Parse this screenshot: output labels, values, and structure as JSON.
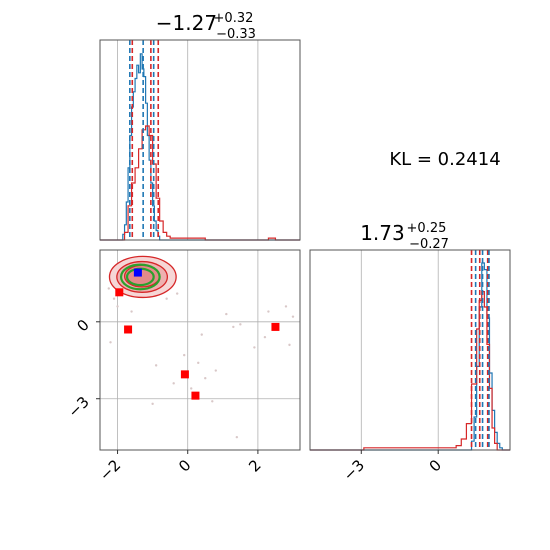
{
  "chart_data": {
    "type": "corner",
    "kl_label": "KL = 0.2414",
    "colors": {
      "hist_a": "#1f77b4",
      "hist_b": "#d62728",
      "contour_fill": "#e8a0a0",
      "contour_line": "#d62728",
      "contour_green": "#2ca02c",
      "marker_blue": "#0000ff",
      "marker_red": "#ff0000",
      "scatter_pts": "#d9c8c8"
    },
    "param1": {
      "title_value": "−1.27",
      "title_plus": "+0.32",
      "title_minus": "−0.33",
      "range": [
        -2.5,
        3.2
      ],
      "ticks": [
        -2,
        0,
        2
      ],
      "tick_labels": [
        "−2",
        "0",
        "2"
      ],
      "blue_quantiles": [
        -1.65,
        -1.27,
        -0.97
      ],
      "red_quantiles": [
        -1.58,
        -1.05,
        -0.84
      ],
      "hist_blue": [
        [
          -2.5,
          0
        ],
        [
          -1.9,
          0
        ],
        [
          -1.85,
          0.03
        ],
        [
          -1.8,
          0.08
        ],
        [
          -1.75,
          0.2
        ],
        [
          -1.7,
          0.38
        ],
        [
          -1.65,
          0.55
        ],
        [
          -1.6,
          0.7
        ],
        [
          -1.55,
          0.78
        ],
        [
          -1.5,
          0.85
        ],
        [
          -1.45,
          0.92
        ],
        [
          -1.4,
          0.88
        ],
        [
          -1.35,
          0.98
        ],
        [
          -1.3,
          0.9
        ],
        [
          -1.25,
          0.86
        ],
        [
          -1.2,
          0.72
        ],
        [
          -1.15,
          0.55
        ],
        [
          -1.1,
          0.42
        ],
        [
          -1.05,
          0.3
        ],
        [
          -1.0,
          0.18
        ],
        [
          -0.95,
          0.1
        ],
        [
          -0.9,
          0.05
        ],
        [
          -0.85,
          0.02
        ],
        [
          -0.8,
          0
        ],
        [
          3.2,
          0
        ]
      ],
      "hist_red": [
        [
          -2.5,
          0
        ],
        [
          -1.9,
          0
        ],
        [
          -1.8,
          0.04
        ],
        [
          -1.7,
          0.18
        ],
        [
          -1.6,
          0.3
        ],
        [
          -1.5,
          0.38
        ],
        [
          -1.4,
          0.48
        ],
        [
          -1.3,
          0.58
        ],
        [
          -1.2,
          0.6
        ],
        [
          -1.1,
          0.55
        ],
        [
          -1.0,
          0.4
        ],
        [
          -0.9,
          0.22
        ],
        [
          -0.8,
          0.1
        ],
        [
          -0.7,
          0.04
        ],
        [
          -0.6,
          0.02
        ],
        [
          -0.5,
          0.01
        ],
        [
          0.0,
          0.01
        ],
        [
          0.5,
          0.0
        ],
        [
          2.3,
          0.01
        ],
        [
          2.5,
          0
        ],
        [
          3.2,
          0
        ]
      ]
    },
    "param2": {
      "title_value": "1.73",
      "title_plus": "+0.25",
      "title_minus": "−0.27",
      "range": [
        -5.0,
        2.8
      ],
      "ticks": [
        -3,
        0
      ],
      "tick_labels": [
        "−3",
        "0"
      ],
      "blue_quantiles": [
        1.46,
        1.73,
        1.98
      ],
      "red_quantiles": [
        1.3,
        1.62,
        1.93
      ],
      "hist_blue": [
        [
          -5.0,
          0
        ],
        [
          1.2,
          0
        ],
        [
          1.3,
          0.04
        ],
        [
          1.4,
          0.15
        ],
        [
          1.5,
          0.38
        ],
        [
          1.6,
          0.65
        ],
        [
          1.7,
          0.85
        ],
        [
          1.8,
          0.82
        ],
        [
          1.9,
          0.6
        ],
        [
          2.0,
          0.35
        ],
        [
          2.1,
          0.18
        ],
        [
          2.2,
          0.08
        ],
        [
          2.3,
          0.03
        ],
        [
          2.4,
          0.01
        ],
        [
          2.5,
          0
        ],
        [
          2.8,
          0
        ]
      ],
      "hist_red": [
        [
          -5.0,
          0
        ],
        [
          -2.9,
          0.01
        ],
        [
          -2.0,
          0.01
        ],
        [
          -1.0,
          0.01
        ],
        [
          0.0,
          0.01
        ],
        [
          0.7,
          0.02
        ],
        [
          0.9,
          0.05
        ],
        [
          1.1,
          0.12
        ],
        [
          1.3,
          0.3
        ],
        [
          1.5,
          0.55
        ],
        [
          1.6,
          0.68
        ],
        [
          1.7,
          0.72
        ],
        [
          1.8,
          0.65
        ],
        [
          1.9,
          0.48
        ],
        [
          2.0,
          0.28
        ],
        [
          2.1,
          0.1
        ],
        [
          2.2,
          0.03
        ],
        [
          2.3,
          0
        ],
        [
          2.8,
          0
        ]
      ]
    },
    "joint": {
      "x_range": [
        -2.5,
        3.2
      ],
      "y_range": [
        -5.0,
        2.8
      ],
      "x_ticks": [
        -2,
        0,
        2
      ],
      "x_tick_labels": [
        "−2",
        "0",
        "2"
      ],
      "y_ticks": [
        -3,
        0
      ],
      "y_tick_labels": [
        "−3",
        "0"
      ],
      "contours_filled": [
        {
          "cx": -1.28,
          "cy": 1.75,
          "rx": 0.95,
          "ry": 0.8
        },
        {
          "cx": -1.3,
          "cy": 1.75,
          "rx": 0.72,
          "ry": 0.6
        },
        {
          "cx": -1.3,
          "cy": 1.78,
          "rx": 0.5,
          "ry": 0.42
        }
      ],
      "contours_green": [
        {
          "cx": -1.35,
          "cy": 1.75,
          "rx": 0.55,
          "ry": 0.48
        },
        {
          "cx": -1.35,
          "cy": 1.75,
          "rx": 0.38,
          "ry": 0.32
        }
      ],
      "blue_marker": [
        -1.42,
        1.92
      ],
      "red_markers": [
        [
          -1.95,
          1.15
        ],
        [
          -1.7,
          -0.3
        ],
        [
          -0.08,
          -2.05
        ],
        [
          0.22,
          -2.88
        ],
        [
          2.5,
          -0.2
        ]
      ],
      "scatter_points": [
        [
          -2.1,
          0.9
        ],
        [
          -2.25,
          1.3
        ],
        [
          -2.0,
          0.6
        ],
        [
          -1.6,
          0.4
        ],
        [
          -0.6,
          0.9
        ],
        [
          -0.3,
          1.1
        ],
        [
          1.1,
          0.3
        ],
        [
          1.5,
          -0.1
        ],
        [
          2.8,
          0.6
        ],
        [
          3.0,
          0.2
        ],
        [
          2.2,
          -0.6
        ],
        [
          2.9,
          -0.9
        ],
        [
          1.3,
          -0.2
        ],
        [
          0.3,
          -1.6
        ],
        [
          -0.9,
          -1.7
        ],
        [
          -0.4,
          -2.4
        ],
        [
          0.5,
          -2.2
        ],
        [
          0.8,
          -1.9
        ],
        [
          -1.0,
          -3.2
        ],
        [
          0.7,
          -3.1
        ],
        [
          1.4,
          -4.5
        ],
        [
          0.1,
          -2.6
        ],
        [
          -2.2,
          -0.8
        ],
        [
          2.3,
          0.4
        ],
        [
          -0.1,
          -1.3
        ],
        [
          1.9,
          -1.0
        ],
        [
          0.4,
          -0.5
        ]
      ]
    }
  }
}
